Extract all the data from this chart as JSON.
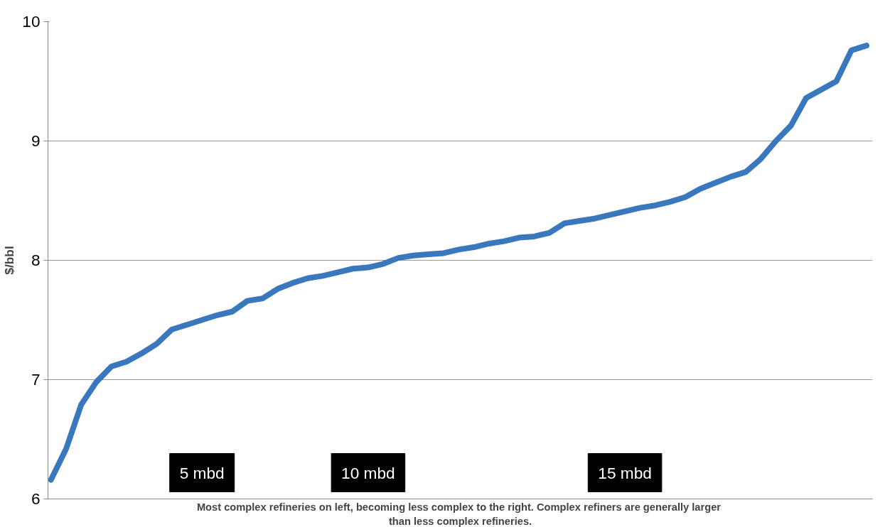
{
  "chart_data": {
    "type": "line",
    "ylabel": "$/bbl",
    "categories": [
      null,
      null,
      null,
      null,
      null,
      null,
      null,
      null,
      null,
      null,
      "5 mbd",
      null,
      null,
      null,
      null,
      null,
      null,
      null,
      null,
      null,
      null,
      "10 mbd",
      null,
      null,
      null,
      null,
      null,
      null,
      null,
      null,
      null,
      null,
      null,
      null,
      null,
      null,
      null,
      null,
      "15 mbd",
      null,
      null,
      null,
      null,
      null,
      null,
      null,
      null,
      null,
      null,
      null,
      null,
      null,
      null,
      null,
      null
    ],
    "series": [
      {
        "color": "#3a78bd",
        "values": [
          6.16,
          6.42,
          6.79,
          6.98,
          7.11,
          7.15,
          7.22,
          7.3,
          7.42,
          7.46,
          7.5,
          7.54,
          7.57,
          7.66,
          7.68,
          7.76,
          7.81,
          7.85,
          7.87,
          7.9,
          7.93,
          7.94,
          7.97,
          8.02,
          8.04,
          8.05,
          8.06,
          8.09,
          8.11,
          8.14,
          8.16,
          8.19,
          8.2,
          8.23,
          8.31,
          8.33,
          8.35,
          8.38,
          8.41,
          8.44,
          8.46,
          8.49,
          8.53,
          8.6,
          8.65,
          8.7,
          8.74,
          8.85,
          9.0,
          9.13,
          9.36,
          9.43,
          9.5,
          9.76,
          9.8
        ]
      }
    ],
    "ylim": [
      6,
      10
    ],
    "yticks": [
      6,
      7,
      8,
      9,
      10
    ],
    "grid": "y",
    "marker": "none",
    "line_style": "solid",
    "annotations": [
      "Most complex refineries on left, becoming less complex to the right.  Complex refiners are generally larger\nthan less complex refineries."
    ]
  }
}
